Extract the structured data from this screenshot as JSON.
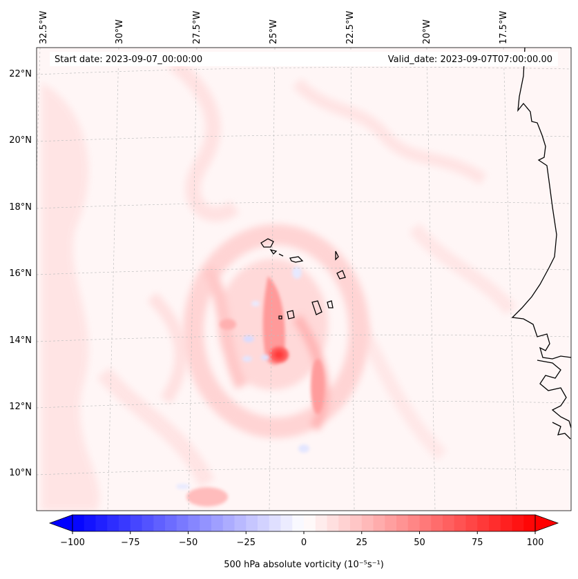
{
  "map": {
    "header": {
      "start_date": "Start date: 2023-09-07_00:00:00",
      "valid_date": "Valid_date: 2023-09-07T07:00:00.00"
    },
    "lon_labels": [
      "32.5°W",
      "30°W",
      "27.5°W",
      "25°W",
      "22.5°W",
      "20°W",
      "17.5°W"
    ],
    "lat_labels": [
      "22°N",
      "20°N",
      "18°N",
      "16°N",
      "14°N",
      "12°N",
      "10°N"
    ],
    "field_name": "500 hPa absolute vorticity",
    "colors": {
      "neg_max": "#0000ff",
      "zero": "#ffffff",
      "pos_max": "#ff0000",
      "coast": "#000000",
      "grid": "#bbbbbb"
    }
  },
  "colorbar": {
    "min": -100,
    "max": 100,
    "step": 5,
    "tick_values": [
      -100,
      -75,
      -50,
      -25,
      0,
      25,
      50,
      75,
      100
    ],
    "tick_labels": [
      "−100",
      "−75",
      "−50",
      "−25",
      "0",
      "25",
      "50",
      "75",
      "100"
    ],
    "label": "500 hPa absolute vorticity (10⁻⁵s⁻¹)"
  }
}
